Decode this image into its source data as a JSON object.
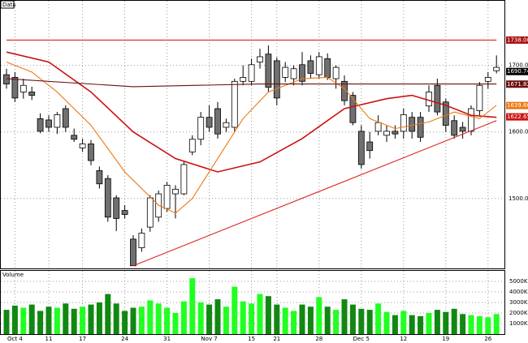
{
  "chart_data": {
    "type": "candlestick",
    "title": "Data",
    "open": [
      1686,
      1682,
      1660,
      1660,
      1620,
      1618,
      1607,
      1635,
      1595,
      1576,
      1582,
      1542,
      1530,
      1501,
      1482,
      1439,
      1426,
      1457,
      1472,
      1485,
      1507,
      1507,
      1570,
      1589,
      1622,
      1635,
      1607,
      1607,
      1676,
      1676,
      1705,
      1717,
      1707,
      1682,
      1680,
      1701,
      1707,
      1686,
      1710,
      1680,
      1676,
      1655,
      1601,
      1585,
      1601,
      1595,
      1601,
      1601,
      1622,
      1622,
      1639,
      1670,
      1645,
      1617,
      1607,
      1601,
      1632,
      1676,
      1692
    ],
    "high": [
      1695,
      1690,
      1680,
      1668,
      1628,
      1625,
      1630,
      1640,
      1605,
      1590,
      1588,
      1548,
      1535,
      1505,
      1490,
      1445,
      1455,
      1505,
      1512,
      1525,
      1520,
      1555,
      1595,
      1630,
      1640,
      1645,
      1620,
      1680,
      1700,
      1710,
      1725,
      1730,
      1712,
      1705,
      1700,
      1720,
      1715,
      1720,
      1718,
      1700,
      1685,
      1660,
      1610,
      1600,
      1625,
      1610,
      1610,
      1635,
      1630,
      1630,
      1670,
      1680,
      1650,
      1625,
      1615,
      1640,
      1675,
      1690,
      1715
    ],
    "low": [
      1665,
      1645,
      1650,
      1648,
      1598,
      1600,
      1597,
      1600,
      1585,
      1570,
      1550,
      1515,
      1465,
      1451,
      1470,
      1399,
      1420,
      1450,
      1465,
      1480,
      1470,
      1505,
      1565,
      1580,
      1600,
      1590,
      1600,
      1600,
      1670,
      1670,
      1695,
      1660,
      1640,
      1675,
      1670,
      1670,
      1680,
      1680,
      1678,
      1665,
      1640,
      1610,
      1545,
      1560,
      1595,
      1585,
      1590,
      1590,
      1590,
      1585,
      1630,
      1625,
      1600,
      1590,
      1590,
      1595,
      1625,
      1665,
      1688
    ],
    "close": [
      1672,
      1651,
      1670,
      1655,
      1601,
      1607,
      1626,
      1607,
      1589,
      1582,
      1557,
      1522,
      1472,
      1470,
      1476,
      1399,
      1448,
      1501,
      1507,
      1520,
      1514,
      1551,
      1589,
      1622,
      1607,
      1597,
      1614,
      1676,
      1682,
      1701,
      1713,
      1667,
      1651,
      1697,
      1695,
      1676,
      1688,
      1713,
      1682,
      1697,
      1647,
      1614,
      1551,
      1572,
      1614,
      1601,
      1597,
      1626,
      1601,
      1592,
      1660,
      1630,
      1610,
      1595,
      1601,
      1635,
      1670,
      1682,
      1697
    ],
    "up_color": "#ffffff",
    "down_color": "#707070",
    "ylim": [
      1395,
      1797
    ],
    "yticks": [
      {
        "value": 1500,
        "label": "1500.00"
      },
      {
        "value": 1600,
        "label": "1600.00"
      },
      {
        "value": 1700,
        "label": "1700.00"
      }
    ],
    "xticks": [
      {
        "value": 1,
        "label": "Oct 4"
      },
      {
        "value": 5,
        "label": "11"
      },
      {
        "value": 9,
        "label": "17"
      },
      {
        "value": 14,
        "label": "24"
      },
      {
        "value": 19,
        "label": "31"
      },
      {
        "value": 24,
        "label": "Nov 7"
      },
      {
        "value": 29,
        "label": "15"
      },
      {
        "value": 32,
        "label": "21"
      },
      {
        "value": 37,
        "label": "28"
      },
      {
        "value": 42,
        "label": "Dec 5"
      },
      {
        "value": 47,
        "label": "12"
      },
      {
        "value": 52,
        "label": "19"
      },
      {
        "value": 57,
        "label": "26"
      }
    ],
    "grid": true,
    "lines": [
      {
        "color": "#cc1111",
        "x": [
          0,
          5,
          10,
          15,
          20,
          25,
          30,
          35,
          40,
          45,
          48,
          52,
          55,
          58
        ],
        "values": [
          1720,
          1705,
          1660,
          1600,
          1560,
          1540,
          1555,
          1590,
          1635,
          1650,
          1655,
          1640,
          1625,
          1622
        ]
      },
      {
        "color": "#ee7711",
        "x": [
          0,
          3,
          6,
          10,
          14,
          18,
          20,
          22,
          25,
          28,
          31,
          35,
          38,
          40,
          43,
          46,
          50,
          53,
          56,
          58
        ],
        "values": [
          1705,
          1690,
          1660,
          1610,
          1540,
          1490,
          1478,
          1500,
          1560,
          1620,
          1660,
          1680,
          1682,
          1665,
          1620,
          1605,
          1615,
          1630,
          1620,
          1640
        ]
      },
      {
        "color": "#6b0f0f",
        "x": [
          0,
          15,
          30,
          45,
          58
        ],
        "values": [
          1680,
          1668,
          1672,
          1672,
          1672
        ]
      },
      {
        "color": "#dd2222",
        "x": [
          0,
          58
        ],
        "values": [
          1738,
          1738
        ]
      },
      {
        "color": "#dd2222",
        "x": [
          15,
          58
        ],
        "values": [
          1399,
          1617
        ]
      }
    ],
    "price_labels": [
      {
        "value": 1738,
        "label": "1738.00",
        "color": "#aa1111"
      },
      {
        "value": 1690.74,
        "label": "1690.74",
        "color": "#000000"
      },
      {
        "value": 1671.82,
        "label": "1671.82",
        "color": "#6b0f0f"
      },
      {
        "value": 1639.66,
        "label": "1639.66",
        "color": "#ee7711"
      },
      {
        "value": 1622.65,
        "label": "1622.65",
        "color": "#cc1111"
      }
    ],
    "volume": {
      "title": "Volume",
      "values": [
        2300,
        2700,
        2500,
        2800,
        2200,
        2600,
        2500,
        2900,
        2400,
        2600,
        2800,
        3000,
        3800,
        2900,
        2200,
        2500,
        2600,
        3200,
        2900,
        2500,
        2000,
        3100,
        5300,
        3000,
        2800,
        3300,
        2600,
        4500,
        3100,
        2900,
        3800,
        3600,
        2800,
        2500,
        2200,
        2800,
        2600,
        3500,
        2600,
        2300,
        3300,
        2800,
        2400,
        2300,
        2900,
        2100,
        1800,
        2200,
        1800,
        1700,
        2000,
        2300,
        2100,
        2400,
        1900,
        1800,
        1700,
        1600,
        1900
      ],
      "up_color": "#22ff22",
      "down_color": "#118811",
      "ylim": [
        0,
        6000
      ],
      "yticks": [
        {
          "value": 1000,
          "label": "1000K"
        },
        {
          "value": 2000,
          "label": "2000K"
        },
        {
          "value": 3000,
          "label": "3000K"
        },
        {
          "value": 4000,
          "label": "4000K"
        },
        {
          "value": 5000,
          "label": "5000K"
        }
      ]
    }
  }
}
